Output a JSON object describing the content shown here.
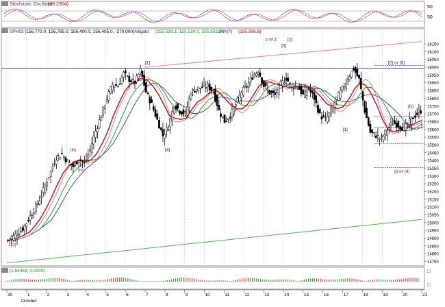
{
  "header": {
    "stoch_title": "Stochastic Oscillator",
    "stoch_value": "(69.2904)",
    "price_symbol": "SPH03",
    "price_values": "(156,770.0, 156,785.0, 156,400.0, 156,495.0, -270.000)",
    "alligator_label": "Alligato",
    "alligator_values": "(155,539.1, 155,510.0, 155,351.0)",
    "lma_label": "LMA(?)",
    "lma_value": "(155,996.8)",
    "ao_values": "(1.54464, 0.0000)"
  },
  "colors": {
    "price": "#000000",
    "red_ma": "#e00000",
    "green_ma": "#00a000",
    "blue_ma": "#3030d0",
    "pink_ma": "#e06090",
    "upper_channel": "#f08080",
    "lower_channel": "#50b050",
    "hline": "#3030c0",
    "stoch_k": "#e00000",
    "stoch_d": "#7070c0",
    "ao_pos": "#2a9a2a",
    "ao_neg": "#e04040",
    "wave_label": "#1a1a8a",
    "wave_label_alt": "#b01010"
  },
  "chart_data": {
    "type": "line",
    "title": "SPH03",
    "y_axis": {
      "ticks": [
        14750,
        14800,
        14850,
        14900,
        14950,
        15000,
        15050,
        15100,
        15150,
        15200,
        15250,
        15300,
        15350,
        15400,
        15450,
        15500,
        15550,
        15600,
        15650,
        15700,
        15750,
        15800,
        15850,
        15900,
        15950,
        16000,
        16050,
        16100,
        16150
      ],
      "range": [
        14730,
        16190
      ]
    },
    "x_axis": {
      "ticks": [
        "30",
        "1",
        "2",
        "3",
        "4",
        "5",
        "6",
        "7",
        "8",
        "9",
        "10",
        "11",
        "12",
        "13",
        "14",
        "15",
        "16",
        "17",
        "18",
        "19",
        "20",
        "21"
      ],
      "month_label": "October"
    },
    "price_close_series": [
      14880,
      14905,
      14925,
      14960,
      15020,
      15080,
      15150,
      15240,
      15330,
      15420,
      15440,
      15390,
      15360,
      15410,
      15380,
      15470,
      15590,
      15690,
      15800,
      15890,
      15880,
      15960,
      15920,
      15900,
      15980,
      15840,
      15760,
      15660,
      15560,
      15620,
      15760,
      15720,
      15700,
      15840,
      15860,
      15870,
      15880,
      15840,
      15720,
      15650,
      15690,
      15760,
      15840,
      15880,
      15940,
      15980,
      15880,
      15840,
      15820,
      15890,
      15930,
      15870,
      15880,
      15820,
      15860,
      15800,
      15690,
      15660,
      15720,
      15800,
      15860,
      15930,
      15990,
      15920,
      15720,
      15580,
      15560,
      15540,
      15600,
      15640,
      15630,
      15600,
      15650,
      15690,
      15720
    ],
    "annotations": [
      {
        "label": "[1]",
        "x": 7.0,
        "y": 16020,
        "color": "blue"
      },
      {
        "label": "[4]",
        "x": 8.0,
        "y": 15460,
        "color": "blue"
      },
      {
        "label": "(iii)",
        "x": 3.2,
        "y": 15460,
        "color": "red"
      },
      {
        "label": "(iv)",
        "x": 3.6,
        "y": 15330,
        "color": "red"
      },
      {
        "label": "[5]",
        "x": 13.9,
        "y": 16130,
        "color": "blue"
      },
      {
        "label": "c of Z",
        "x": 13.1,
        "y": 16170,
        "color": "blue"
      },
      {
        "label": "[2]",
        "x": 14.2,
        "y": 16170,
        "color": "purple"
      },
      {
        "label": "[1]",
        "x": 17.0,
        "y": 15590,
        "color": "blue"
      },
      {
        "label": "[2] or (5)",
        "x": 19.3,
        "y": 16020,
        "color": "blue"
      },
      {
        "label": "(iii)",
        "x": 20.3,
        "y": 15740,
        "color": "red"
      },
      {
        "label": "(i) or (4)",
        "x": 19.6,
        "y": 15320,
        "color": "red"
      },
      {
        "label": "[2]",
        "x": 0.2,
        "y": 14850,
        "color": "blue"
      }
    ],
    "hlines": [
      15994,
      16012,
      15680,
      15610,
      15510,
      15355
    ],
    "upper_channel": {
      "from": [
        7.0,
        16000
      ],
      "to": [
        21.0,
        16165
      ]
    },
    "lower_channel": {
      "from": [
        0.0,
        14740
      ],
      "to": [
        21.0,
        15020
      ]
    }
  }
}
